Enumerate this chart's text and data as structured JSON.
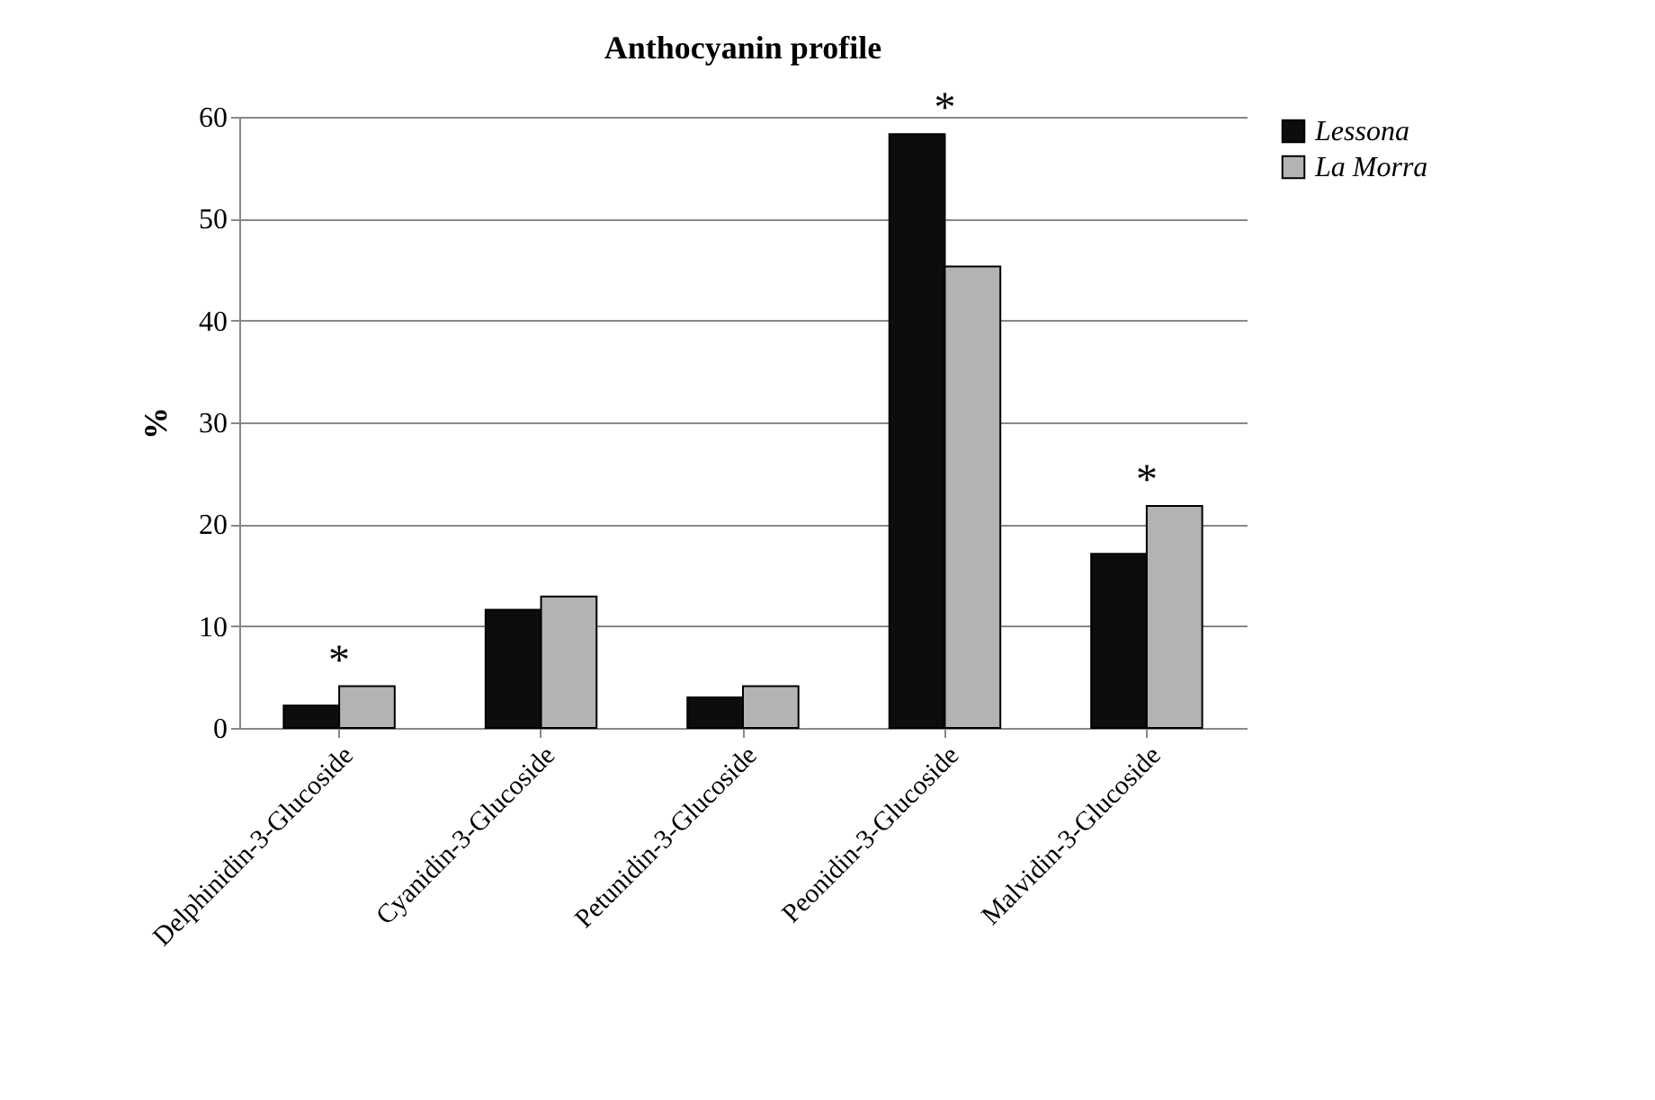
{
  "chart_data": {
    "type": "bar",
    "title": "Anthocyanin profile",
    "ylabel": "%",
    "categories": [
      "Delphinidin-3-Glucoside",
      "Cyanidin-3-Glucoside",
      "Petunidin-3-Glucoside",
      "Peonidin-3-Glucoside",
      "Malvidin-3-Glucoside"
    ],
    "series": [
      {
        "name": "Lessona",
        "color": "#0d0d0d",
        "values": [
          2.2,
          11.6,
          3.0,
          58.3,
          17.1
        ]
      },
      {
        "name": "La Morra",
        "color": "#b3b3b3",
        "values": [
          4.1,
          12.9,
          4.1,
          45.3,
          21.8
        ]
      }
    ],
    "ylim": [
      0,
      60
    ],
    "yticks": [
      0,
      10,
      20,
      30,
      40,
      50,
      60
    ],
    "grid": "y",
    "legend": "top right",
    "annotations": [
      "*",
      "*",
      "*"
    ]
  }
}
